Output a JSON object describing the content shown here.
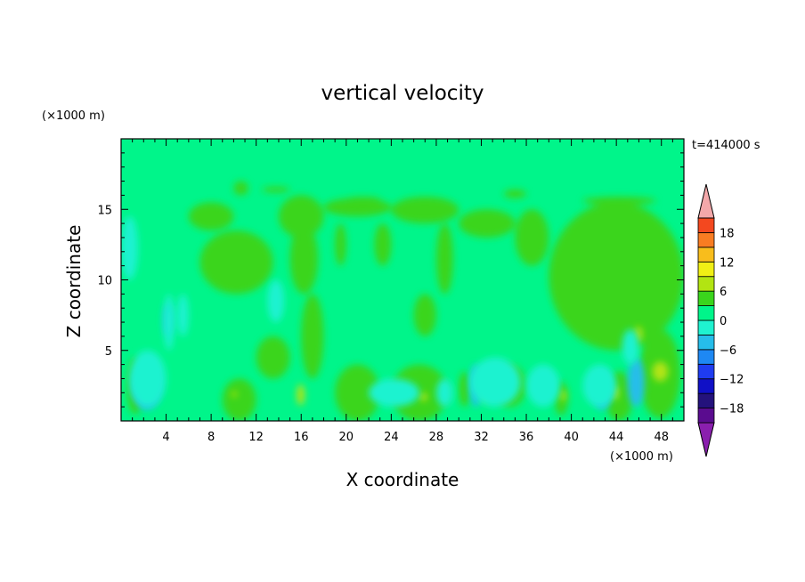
{
  "chart_data": {
    "type": "heatmap",
    "title": "vertical velocity",
    "xlabel": "X coordinate",
    "ylabel": "Z coordinate",
    "x_unit": "(×1000 m)",
    "y_unit": "(×1000 m)",
    "time_label": "t=414000 s",
    "xlim": [
      0,
      50
    ],
    "ylim": [
      0,
      20
    ],
    "x_ticks": [
      4,
      8,
      12,
      16,
      20,
      24,
      28,
      32,
      36,
      40,
      44,
      48
    ],
    "x_tick_labels": [
      "4",
      "8",
      "12",
      "16",
      "20",
      "24",
      "28",
      "32",
      "36",
      "40",
      "44",
      "48"
    ],
    "y_ticks": [
      5,
      10,
      15
    ],
    "y_tick_labels": [
      "5",
      "10",
      "15"
    ],
    "colorbar": {
      "levels": [
        -21,
        -18,
        -15,
        -12,
        -9,
        -6,
        -3,
        0,
        3,
        6,
        9,
        12,
        15,
        18,
        21
      ],
      "labels": [
        "18",
        "12",
        "6",
        "0",
        "−6",
        "−12",
        "−18"
      ],
      "label_values": [
        18,
        12,
        6,
        0,
        -6,
        -12,
        -18
      ],
      "colors_bottom_to_top": [
        "#8a1fae",
        "#5a0c8f",
        "#24127c",
        "#1010c6",
        "#1f3cf0",
        "#1e88f3",
        "#26bdea",
        "#1ff2d0",
        "#00f58a",
        "#3ad51c",
        "#b2e412",
        "#f0ef15",
        "#f8bd1c",
        "#f87c22",
        "#f3481f",
        "#dd1e1b",
        "#f3a8aa"
      ],
      "background_color": "#00f58a"
    },
    "regions": [
      {
        "level": "0 to 3",
        "color": "#3ad51c",
        "cells": [
          [
            10,
            16,
            11.3,
            17
          ],
          [
            12.5,
            16.2,
            15,
            16.6
          ],
          [
            20,
            15.5,
            23,
            15.9
          ],
          [
            34,
            15.8,
            36,
            16.4
          ],
          [
            41,
            15.3,
            47.5,
            15.9
          ],
          [
            6,
            13.5,
            10,
            15.5
          ],
          [
            14,
            13,
            18,
            16
          ],
          [
            18,
            14.5,
            24,
            15.8
          ],
          [
            24,
            14,
            30,
            15.9
          ],
          [
            30,
            13,
            35,
            15
          ],
          [
            7,
            9,
            13.5,
            13.5
          ],
          [
            15,
            9,
            17.5,
            14
          ],
          [
            19,
            11,
            20,
            14
          ],
          [
            22.5,
            11,
            24,
            14
          ],
          [
            28,
            9,
            29.5,
            14
          ],
          [
            35,
            11,
            38,
            15
          ],
          [
            38,
            5,
            50,
            15.5
          ],
          [
            16,
            3,
            18,
            9
          ],
          [
            12,
            3,
            15,
            6
          ],
          [
            26,
            6,
            28,
            9
          ],
          [
            30,
            1,
            31,
            3.5
          ],
          [
            33,
            1,
            36,
            4
          ],
          [
            19,
            0,
            23,
            4
          ],
          [
            24,
            0,
            29,
            4
          ],
          [
            38.5,
            0.4,
            39.7,
            2.8
          ],
          [
            43,
            0,
            45.5,
            3.5
          ],
          [
            46,
            0.2,
            49.7,
            6.5
          ],
          [
            0.5,
            0.5,
            2,
            4.5
          ],
          [
            9,
            0,
            12,
            3
          ]
        ]
      },
      {
        "level": "3 to 6",
        "color": "#b2e412",
        "cells": [
          [
            15.6,
            1.1,
            16.3,
            2.6
          ],
          [
            32.2,
            1.3,
            32.6,
            2.7
          ],
          [
            39,
            1.4,
            39.5,
            2.2
          ],
          [
            43.5,
            1.5,
            44.2,
            2.5
          ],
          [
            45.6,
            5.6,
            46.3,
            6.7
          ],
          [
            47.2,
            2.8,
            48.6,
            4.2
          ],
          [
            9.8,
            1.7,
            10.3,
            2.1
          ],
          [
            26.5,
            1.4,
            27.2,
            2.0
          ]
        ]
      },
      {
        "level": "-6 to -3",
        "color": "#26bdea",
        "cells": [
          [
            1,
            0.8,
            3.5,
            4
          ],
          [
            3.8,
            6,
            4.5,
            8.3
          ],
          [
            42,
            0.8,
            43.5,
            3.5
          ],
          [
            45,
            1,
            46.5,
            4.5
          ],
          [
            31,
            1,
            32,
            4
          ]
        ]
      },
      {
        "level": "-3 to 0",
        "color": "#1ff2d0",
        "cells": [
          [
            0.7,
            1,
            4,
            5
          ],
          [
            3.8,
            5,
            4.7,
            9
          ],
          [
            5,
            6,
            6,
            9
          ],
          [
            0,
            10,
            1.5,
            14.5
          ],
          [
            13,
            7,
            14.5,
            10
          ],
          [
            22,
            1,
            26.5,
            3
          ],
          [
            28,
            1,
            29.5,
            3
          ],
          [
            31,
            1,
            35.5,
            4.5
          ],
          [
            36,
            1,
            39,
            4
          ],
          [
            41,
            1,
            44,
            4
          ],
          [
            44.5,
            4,
            46,
            6.5
          ]
        ]
      }
    ]
  }
}
